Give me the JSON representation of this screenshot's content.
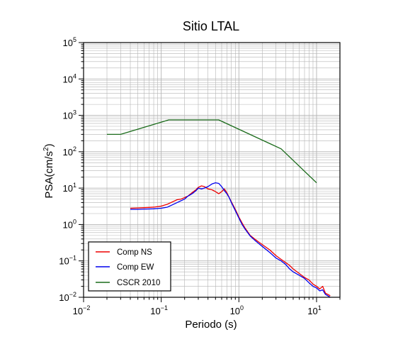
{
  "chart_data": {
    "type": "line",
    "title": "Sitio LTAL",
    "xlabel": "Periodo (s)",
    "ylabel_main": "PSA(cm/s",
    "ylabel_sup": "2",
    "ylabel_tail": ")",
    "x_scale": "log",
    "y_scale": "log",
    "xlim": [
      0.01,
      20
    ],
    "ylim": [
      0.01,
      100000
    ],
    "grid": true,
    "legend_position": "bottom-left",
    "x_ticks": [
      {
        "base": "10",
        "exp": "−2",
        "value": 0.01
      },
      {
        "base": "10",
        "exp": "−1",
        "value": 0.1
      },
      {
        "base": "10",
        "exp": "0",
        "value": 1
      },
      {
        "base": "10",
        "exp": "1",
        "value": 10
      }
    ],
    "y_ticks": [
      {
        "base": "10",
        "exp": "−2",
        "value": 0.01
      },
      {
        "base": "10",
        "exp": "−1",
        "value": 0.1
      },
      {
        "base": "10",
        "exp": "0",
        "value": 1
      },
      {
        "base": "10",
        "exp": "1",
        "value": 10
      },
      {
        "base": "10",
        "exp": "2",
        "value": 100
      },
      {
        "base": "10",
        "exp": "3",
        "value": 1000
      },
      {
        "base": "10",
        "exp": "4",
        "value": 10000
      },
      {
        "base": "10",
        "exp": "5",
        "value": 100000
      }
    ],
    "series": [
      {
        "name": "Comp NS",
        "color": "#ee0000",
        "x": [
          0.04,
          0.05,
          0.06,
          0.08,
          0.1,
          0.12,
          0.14,
          0.16,
          0.18,
          0.2,
          0.22,
          0.25,
          0.28,
          0.3,
          0.33,
          0.36,
          0.4,
          0.45,
          0.5,
          0.55,
          0.6,
          0.65,
          0.7,
          0.75,
          0.8,
          0.9,
          1.0,
          1.1,
          1.2,
          1.4,
          1.6,
          1.8,
          2.0,
          2.5,
          3.0,
          3.5,
          4.0,
          4.5,
          5.0,
          6.0,
          7.0,
          8.0,
          9.0,
          10.0,
          11.0,
          12.0,
          13.0,
          15.0
        ],
        "y": [
          2.8,
          2.85,
          2.9,
          3.0,
          3.2,
          3.6,
          4.2,
          4.8,
          5.0,
          5.5,
          6.0,
          7.5,
          9.0,
          10.5,
          11.5,
          11.0,
          9.5,
          9.0,
          8.0,
          7.0,
          8.0,
          9.5,
          7.5,
          5.5,
          4.2,
          2.6,
          1.6,
          1.1,
          0.8,
          0.5,
          0.4,
          0.33,
          0.28,
          0.2,
          0.14,
          0.11,
          0.09,
          0.075,
          0.06,
          0.045,
          0.035,
          0.03,
          0.023,
          0.02,
          0.017,
          0.02,
          0.013,
          0.011
        ]
      },
      {
        "name": "Comp EW",
        "color": "#0000ee",
        "x": [
          0.04,
          0.05,
          0.06,
          0.08,
          0.1,
          0.12,
          0.14,
          0.16,
          0.18,
          0.2,
          0.22,
          0.25,
          0.28,
          0.3,
          0.33,
          0.36,
          0.4,
          0.45,
          0.5,
          0.55,
          0.6,
          0.65,
          0.7,
          0.75,
          0.8,
          0.9,
          1.0,
          1.1,
          1.2,
          1.4,
          1.6,
          1.8,
          2.0,
          2.5,
          3.0,
          3.5,
          4.0,
          4.5,
          5.0,
          6.0,
          7.0,
          8.0,
          9.0,
          10.0,
          11.0,
          12.0,
          13.0,
          15.0
        ],
        "y": [
          2.6,
          2.6,
          2.65,
          2.7,
          2.8,
          3.0,
          3.5,
          4.0,
          4.5,
          5.0,
          6.0,
          7.0,
          8.5,
          10.0,
          9.5,
          10.0,
          11.0,
          13.0,
          14.0,
          13.5,
          11.0,
          8.5,
          7.0,
          5.5,
          4.0,
          2.4,
          1.5,
          1.0,
          0.75,
          0.48,
          0.37,
          0.3,
          0.25,
          0.17,
          0.12,
          0.1,
          0.08,
          0.06,
          0.05,
          0.04,
          0.033,
          0.025,
          0.02,
          0.018,
          0.015,
          0.016,
          0.012,
          0.01
        ]
      },
      {
        "name": "CSCR 2010",
        "color": "#1a6b1a",
        "x": [
          0.02,
          0.03,
          0.125,
          0.55,
          3.5,
          10.0
        ],
        "y": [
          300,
          300,
          750,
          750,
          120,
          14
        ]
      }
    ]
  }
}
